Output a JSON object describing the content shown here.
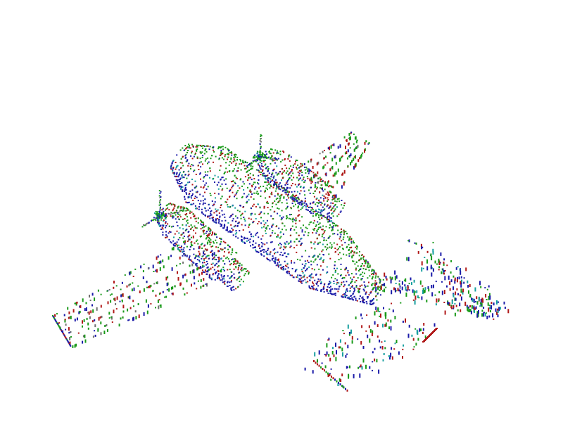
{
  "scene": {
    "subject": "point-cloud-airplane",
    "background_color": "#ffffff",
    "point_colors": {
      "green": "#1a9a1a",
      "blue": "#1a1aa8",
      "red": "#b01818",
      "teal": "#18a0a0",
      "gray": "#707070"
    }
  }
}
